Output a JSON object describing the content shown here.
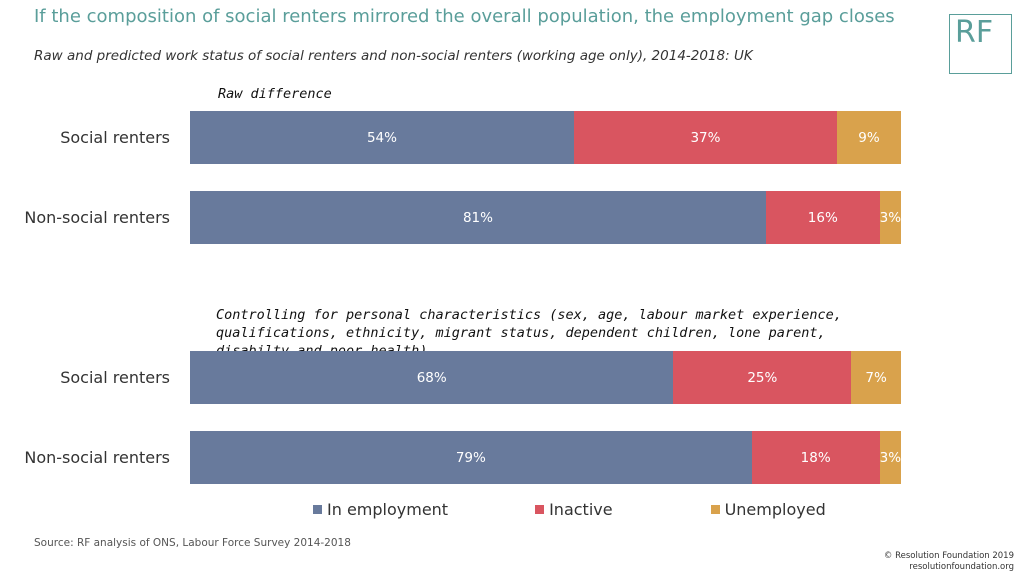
{
  "title": "If the composition of social renters mirrored the overall population, the employment gap closes",
  "subtitle": "Raw and predicted work status of social renters and non-social renters (working age only), 2014-2018: UK",
  "logo_text": "RF",
  "colors": {
    "title": "#5a9e9a",
    "employment": "#687a9c",
    "inactive": "#d95560",
    "unemployed": "#d9a24c"
  },
  "chart_data": [
    {
      "type": "bar",
      "stacked": true,
      "orientation": "horizontal",
      "title": "Raw difference",
      "categories": [
        "Social renters",
        "Non-social renters"
      ],
      "series": [
        {
          "name": "In employment",
          "values": [
            54,
            81
          ],
          "labels": [
            "54%",
            "81%"
          ]
        },
        {
          "name": "Inactive",
          "values": [
            37,
            16
          ],
          "labels": [
            "37%",
            "16%"
          ]
        },
        {
          "name": "Unemployed",
          "values": [
            9,
            3
          ],
          "labels": [
            "9%",
            "3%"
          ]
        }
      ]
    },
    {
      "type": "bar",
      "stacked": true,
      "orientation": "horizontal",
      "title": "Controlling for personal characteristics (sex, age, labour market experience, qualifications, ethnicity, migrant status, dependent children, lone parent, disabilty and poor health)",
      "categories": [
        "Social renters",
        "Non-social renters"
      ],
      "series": [
        {
          "name": "In employment",
          "values": [
            68,
            79
          ],
          "labels": [
            "68%",
            "79%"
          ]
        },
        {
          "name": "Inactive",
          "values": [
            25,
            18
          ],
          "labels": [
            "25%",
            "18%"
          ]
        },
        {
          "name": "Unemployed",
          "values": [
            7,
            3
          ],
          "labels": [
            "7%",
            "3%"
          ]
        }
      ]
    }
  ],
  "legend": {
    "placement": "bottom",
    "items": [
      {
        "label": "In employment",
        "color": "#687a9c"
      },
      {
        "label": "Inactive",
        "color": "#d95560"
      },
      {
        "label": "Unemployed",
        "color": "#d9a24c"
      }
    ]
  },
  "source": "Source: RF analysis of ONS, Labour Force Survey 2014-2018",
  "copyright": {
    "line1": "© Resolution Foundation 2019",
    "line2": "resolutionfoundation.org"
  }
}
